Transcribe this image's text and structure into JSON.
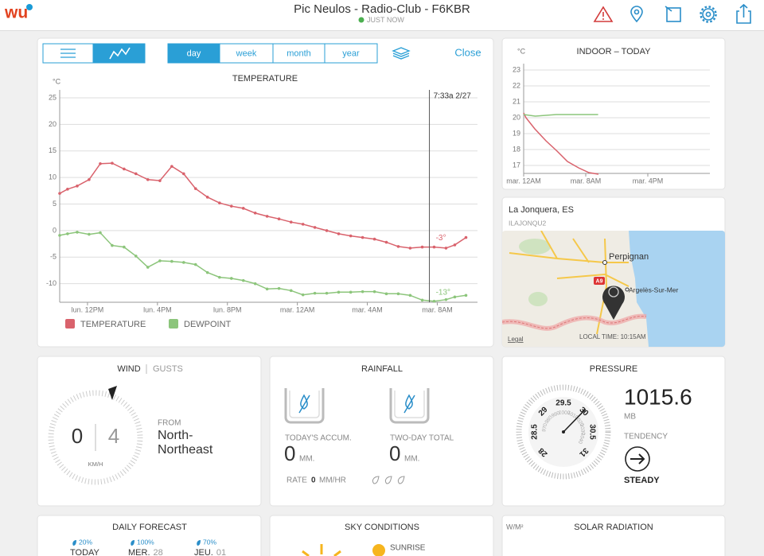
{
  "header": {
    "logo": "wu",
    "title": "Pic Neulos - Radio-Club - F6KBR",
    "status": "JUST NOW"
  },
  "toolbar": {
    "ranges": [
      "day",
      "week",
      "month",
      "year"
    ],
    "active": 0,
    "close": "Close"
  },
  "temperature_chart": {
    "type": "line",
    "title": "TEMPERATURE",
    "unit": "°C",
    "x": [
      10.41,
      10.86,
      11.41,
      12.09,
      12.73,
      13.41,
      14.09,
      14.77,
      15.45,
      16.14,
      16.82,
      17.5,
      18.18,
      18.86,
      19.55,
      20.23,
      20.91,
      21.59,
      22.27,
      22.95,
      23.64,
      24.32,
      25.0,
      25.68,
      26.36,
      27.05,
      27.73,
      28.41,
      29.09,
      29.77,
      30.45,
      31.14,
      31.82,
      32.5,
      33.0,
      33.64
    ],
    "series": [
      {
        "name": "TEMPERATURE",
        "color": "#d9626c",
        "current_label": "-3°",
        "values": [
          7.0,
          7.8,
          8.4,
          9.6,
          12.6,
          12.7,
          11.6,
          10.7,
          9.6,
          9.4,
          12.1,
          10.7,
          7.9,
          6.3,
          5.2,
          4.6,
          4.2,
          3.3,
          2.7,
          2.2,
          1.6,
          1.2,
          0.6,
          0,
          -0.6,
          -1.0,
          -1.3,
          -1.6,
          -2.2,
          -3.0,
          -3.3,
          -3.1,
          -3.1,
          -3.3,
          -2.7,
          -1.3
        ]
      },
      {
        "name": "DEWPOINT",
        "color": "#8cc57b",
        "current_label": "-13°",
        "values": [
          -0.9,
          -0.6,
          -0.3,
          -0.7,
          -0.4,
          -2.8,
          -3.1,
          -4.8,
          -6.9,
          -5.7,
          -5.8,
          -6.0,
          -6.4,
          -7.9,
          -8.8,
          -9.0,
          -9.4,
          -10.0,
          -11.0,
          -10.9,
          -11.3,
          -12.1,
          -11.8,
          -11.8,
          -11.6,
          -11.6,
          -11.5,
          -11.5,
          -11.9,
          -11.9,
          -12.2,
          -13.1,
          -13.3,
          -13.0,
          -12.5,
          -12.2
        ]
      }
    ],
    "xlim": [
      10.41,
      34.3
    ],
    "xticks": [
      {
        "value": 12,
        "label": "lun. 12PM"
      },
      {
        "value": 16,
        "label": "lun. 4PM"
      },
      {
        "value": 20,
        "label": "lun. 8PM"
      },
      {
        "value": 24,
        "label": "mar. 12AM"
      },
      {
        "value": 28,
        "label": "mar. 4AM"
      },
      {
        "value": 32,
        "label": "mar. 8AM"
      }
    ],
    "ylim": [
      -13.5,
      26.5
    ],
    "yticks": [
      -10,
      -5,
      0,
      5,
      10,
      15,
      20,
      25
    ],
    "grid": true,
    "markers": true,
    "cursor": {
      "value": 31.55,
      "label": "7:33a 2/27"
    }
  },
  "indoor_chart": {
    "type": "line",
    "title": "INDOOR – TODAY",
    "unit": "°C",
    "series": [
      {
        "color": "#d9626c",
        "x": [
          0,
          0.3,
          1.44,
          2.87,
          4.31,
          5.64,
          7.08,
          8.41,
          9.64
        ],
        "values": [
          20.3,
          20.0,
          19.3,
          18.55,
          17.9,
          17.25,
          16.85,
          16.55,
          16.45
        ]
      },
      {
        "color": "#8cc57b",
        "x": [
          0,
          1.5,
          4.2,
          9.6
        ],
        "values": [
          20.2,
          20.1,
          20.2,
          20.2
        ]
      }
    ],
    "xlim": [
      0,
      24
    ],
    "xticks": [
      {
        "value": 0,
        "label": "mar. 12AM"
      },
      {
        "value": 8,
        "label": "mar. 8AM"
      },
      {
        "value": 16,
        "label": "mar. 4PM"
      }
    ],
    "ylim": [
      16.5,
      23.4
    ],
    "yticks": [
      17,
      18,
      19,
      20,
      21,
      22,
      23
    ],
    "grid": true,
    "markers": false
  },
  "map": {
    "location": "La Jonquera, ES",
    "station": "ILAJONQU2",
    "city": "Perpignan",
    "town": "Argelès-Sur-Mer",
    "road": "A9",
    "legal": "Legal",
    "local_time": "LOCAL TIME: 10:15AM"
  },
  "wind": {
    "title": "WIND",
    "gusts_title": "GUSTS",
    "speed": 0,
    "gust": 4,
    "unit": "KM/H",
    "from_label": "FROM",
    "direction": [
      "North-",
      "Northeast"
    ]
  },
  "rainfall": {
    "title": "RAINFALL",
    "today_label": "TODAY'S ACCUM.",
    "today": 0,
    "today_unit": "MM.",
    "total_label": "TWO-DAY TOTAL",
    "total": 0,
    "total_unit": "MM.",
    "rate_label": "RATE",
    "rate": 0,
    "rate_unit": "MM/HR"
  },
  "pressure": {
    "title": "PRESSURE",
    "value": 1015.6,
    "unit": "MB",
    "tendency_label": "TENDENCY",
    "tendency": "STEADY",
    "inhg_ticks": [
      28,
      28.5,
      29,
      29.5,
      30,
      30.5,
      31
    ],
    "mb_ticks": [
      970,
      980,
      990,
      1000,
      1010,
      1020,
      1030,
      1040
    ]
  },
  "forecast": {
    "title": "DAILY FORECAST",
    "days": [
      {
        "chance": "20%",
        "day": "TODAY",
        "date": ""
      },
      {
        "chance": "100%",
        "day": "MER.",
        "date": "28"
      },
      {
        "chance": "70%",
        "day": "JEU.",
        "date": "01"
      }
    ]
  },
  "sky": {
    "title": "SKY CONDITIONS",
    "sunrise": "SUNRISE"
  },
  "solar": {
    "title": "SOLAR RADIATION",
    "unit": "W/M²"
  }
}
